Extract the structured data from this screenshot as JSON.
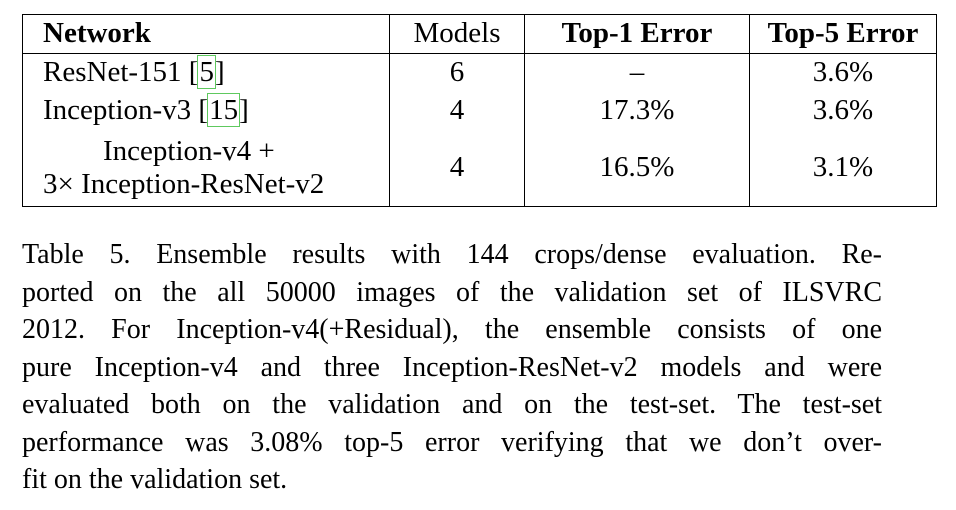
{
  "table": {
    "headers": {
      "network": "Network",
      "models": "Models",
      "top1": "Top-1 Error",
      "top5": "Top-5 Error"
    },
    "rows": [
      {
        "network": "ResNet-151 ",
        "cite_open": "[",
        "cite": "5",
        "cite_close": "]",
        "models": "6",
        "top1": "–",
        "top5": "3.6%"
      },
      {
        "network": "Inception-v3 ",
        "cite_open": "[",
        "cite": "15",
        "cite_close": "]",
        "models": "4",
        "top1": "17.3%",
        "top5": "3.6%"
      },
      {
        "network_line1": "Inception-v4 +",
        "network_line2": "3× Inception-ResNet-v2",
        "models": "4",
        "top1": "16.5%",
        "top5": "3.1%"
      }
    ]
  },
  "caption": {
    "lines": [
      "Table 5. Ensemble results with 144 crops/dense evaluation. Re-",
      "ported on the all 50000 images of the validation set of ILSVRC",
      "2012. For Inception-v4(+Residual), the ensemble consists of one",
      "pure Inception-v4 and three Inception-ResNet-v2 models and were",
      "evaluated both on the validation and on the test-set. The test-set",
      "performance was 3.08% top-5 error verifying that we don’t over-",
      "fit on the validation set."
    ]
  }
}
